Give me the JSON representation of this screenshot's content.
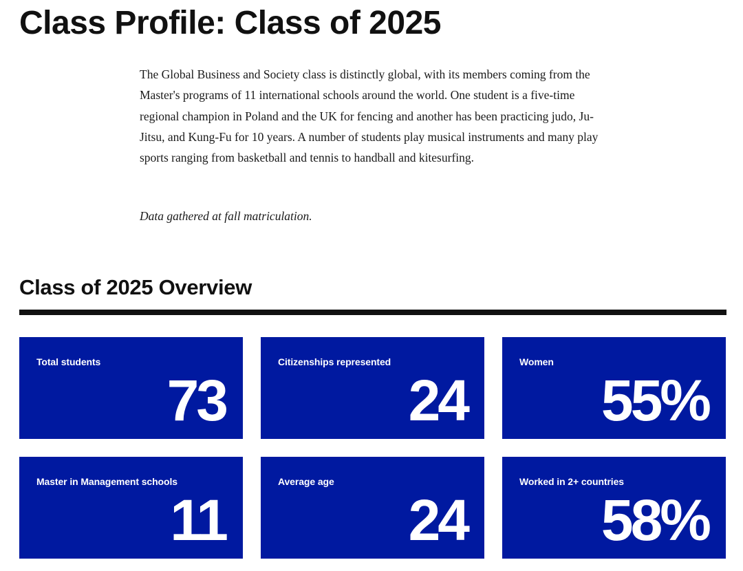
{
  "page": {
    "title": "Class Profile: Class of 2025"
  },
  "intro": {
    "paragraph": "The Global Business and Society class is distinctly global, with its members coming from the Master's programs of 11 international schools around the world. One student is a five-time regional champion in Poland and the UK for fencing and another has been practicing judo, Ju-Jitsu, and Kung-Fu for 10 years. A number of students play musical instruments and many play sports ranging from basketball and tennis to handball and kitesurfing.",
    "note": "Data gathered at fall matriculation."
  },
  "overview": {
    "title": "Class of 2025 Overview",
    "accent_color": "#0019a0",
    "stats": [
      {
        "label": "Total students",
        "value": "73"
      },
      {
        "label": "Citizenships represented",
        "value": "24"
      },
      {
        "label": "Women",
        "value": "55%"
      },
      {
        "label": "Master in Management schools",
        "value": "11"
      },
      {
        "label": "Average age",
        "value": "24"
      },
      {
        "label": "Worked in 2+ countries",
        "value": "58%"
      }
    ]
  }
}
